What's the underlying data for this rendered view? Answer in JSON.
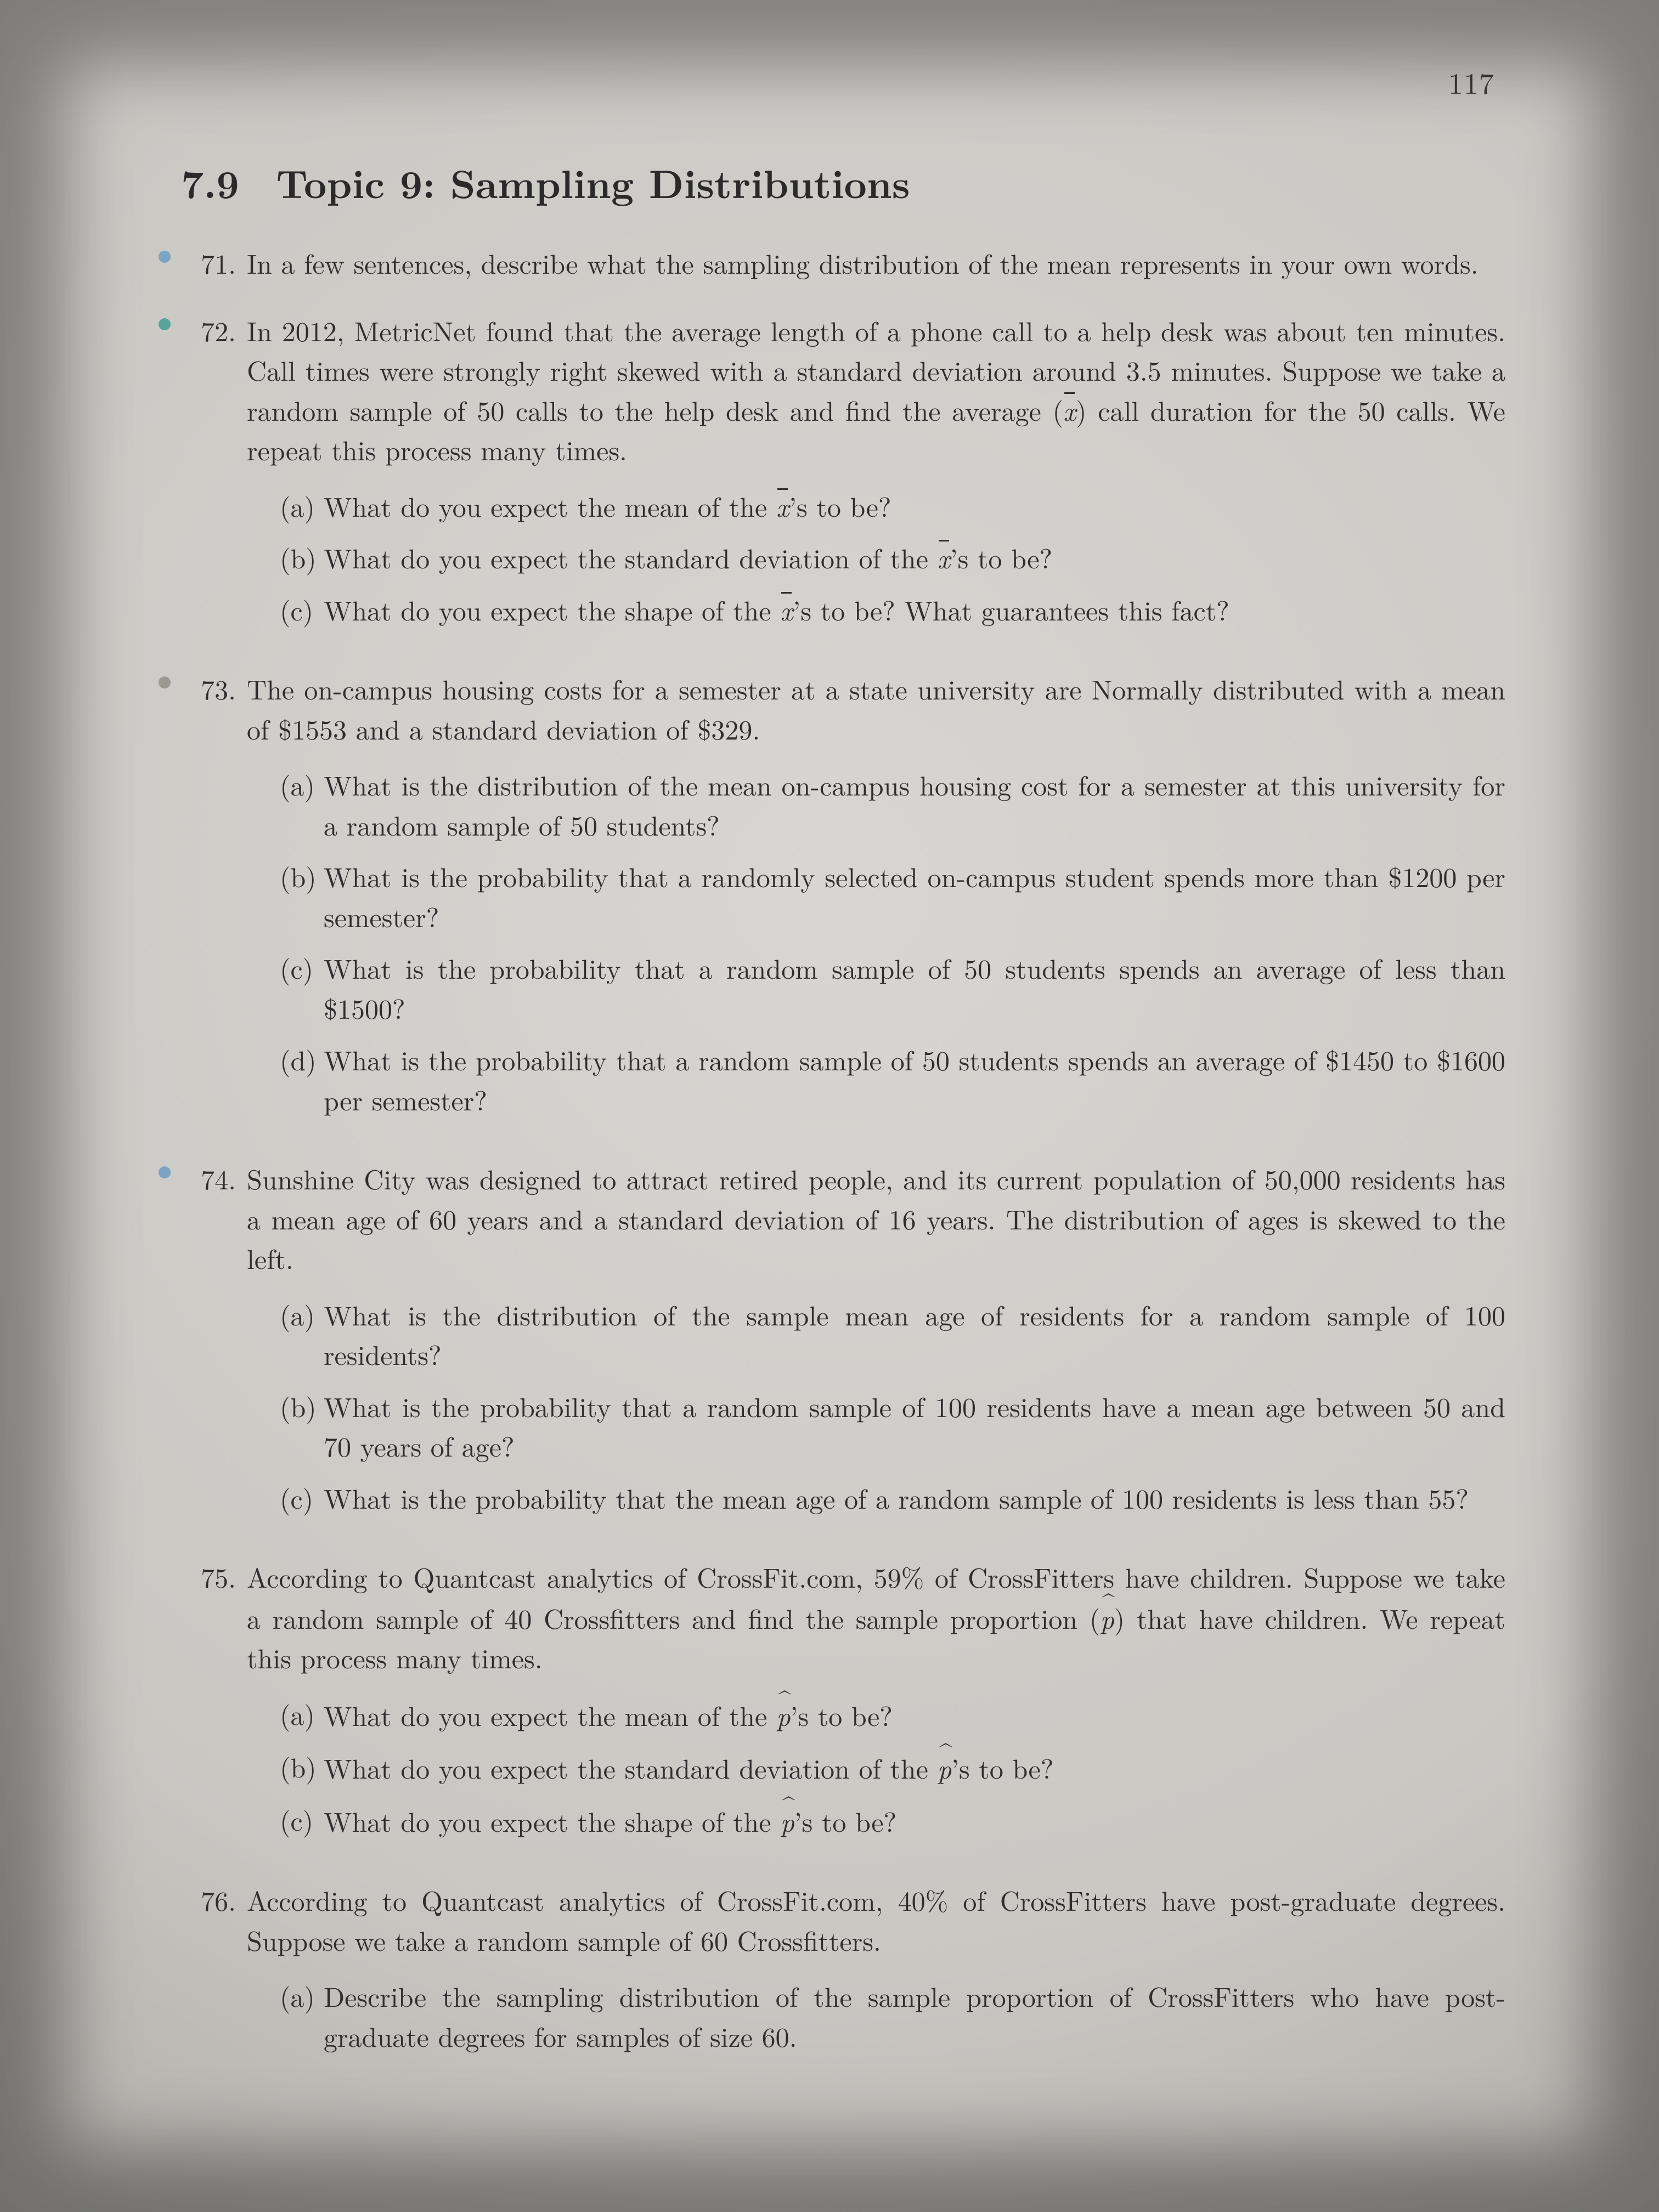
{
  "page_number": "117",
  "section": {
    "number": "7.9",
    "title": "Topic 9: Sampling Distributions"
  },
  "typography": {
    "body_fontsize_pt": 50,
    "heading_fontsize_pt": 72,
    "font_family": "CMU Serif / Times",
    "text_color": "#2a2a2a",
    "background_color": "#d0cec9"
  },
  "bullet_colors": {
    "blue": "#7aa3c4",
    "teal": "#5aa39a",
    "gray": "#9a9a92"
  },
  "questions": [
    {
      "number": "71.",
      "dot": "blue",
      "text": "In a few sentences, describe what the sampling distribution of the mean represents in your own words."
    },
    {
      "number": "72.",
      "dot": "teal",
      "text_html": "In 2012, MetricNet found that the average length of a phone call to a help desk was about ten minutes. Call times were strongly right skewed with a standard deviation around 3.5 minutes. Suppose we take a random sample of 50 calls to the help desk and find the average (<span class=\"xbar\">x</span>) call duration for the 50 calls. We repeat this process many times.",
      "subparts": [
        {
          "label": "(a)",
          "text_html": "What do you expect the mean of the <span class=\"xbar\">x</span>’s to be?"
        },
        {
          "label": "(b)",
          "text_html": "What do you expect the standard deviation of the <span class=\"xbar\">x</span>’s to be?"
        },
        {
          "label": "(c)",
          "text_html": "What do you expect the shape of the <span class=\"xbar\">x</span>’s to be? What guarantees this fact?"
        }
      ]
    },
    {
      "number": "73.",
      "dot": "gray",
      "text": "The on-campus housing costs for a semester at a state university are Normally distributed with a mean of $1553 and a standard deviation of $329.",
      "subparts": [
        {
          "label": "(a)",
          "text": "What is the distribution of the mean on-campus housing cost for a semester at this university for a random sample of 50 students?"
        },
        {
          "label": "(b)",
          "text": "What is the probability that a randomly selected on-campus student spends more than $1200 per semester?"
        },
        {
          "label": "(c)",
          "text": "What is the probability that a random sample of 50 students spends an average of less than $1500?"
        },
        {
          "label": "(d)",
          "text": "What is the probability that a random sample of 50 students spends an average of $1450 to $1600 per semester?"
        }
      ]
    },
    {
      "number": "74.",
      "dot": "blue",
      "text": "Sunshine City was designed to attract retired people, and its current population of 50,000 residents has a mean age of 60 years and a standard deviation of 16 years. The distribution of ages is skewed to the left.",
      "subparts": [
        {
          "label": "(a)",
          "text": "What is the distribution of the sample mean age of residents for a random sample of 100 residents?"
        },
        {
          "label": "(b)",
          "text": "What is the probability that a random sample of 100 residents have a mean age between 50 and 70 years of age?"
        },
        {
          "label": "(c)",
          "text": "What is the probability that the mean age of a random sample of 100 residents is less than 55?"
        }
      ]
    },
    {
      "number": "75.",
      "dot": "",
      "text_html": "According to Quantcast analytics of CrossFit.com, 59% of CrossFitters have children. Suppose we take a random sample of 40 Crossfitters and find the sample proportion (<span class=\"phat\">p</span>) that have children. We repeat this process many times.",
      "subparts": [
        {
          "label": "(a)",
          "text_html": "What do you expect the mean of the <span class=\"phat\">p</span>’s to be?"
        },
        {
          "label": "(b)",
          "text_html": "What do you expect the standard deviation of the <span class=\"phat\">p</span>’s to be?"
        },
        {
          "label": "(c)",
          "text_html": "What do you expect the shape of the <span class=\"phat\">p</span>’s to be?"
        }
      ]
    },
    {
      "number": "76.",
      "dot": "",
      "text": "According to Quantcast analytics of CrossFit.com, 40% of CrossFitters have post-graduate degrees. Suppose we take a random sample of 60 Crossfitters.",
      "subparts": [
        {
          "label": "(a)",
          "text": "Describe the sampling distribution of the sample proportion of CrossFitters who have post-graduate degrees for samples of size 60."
        }
      ]
    }
  ]
}
